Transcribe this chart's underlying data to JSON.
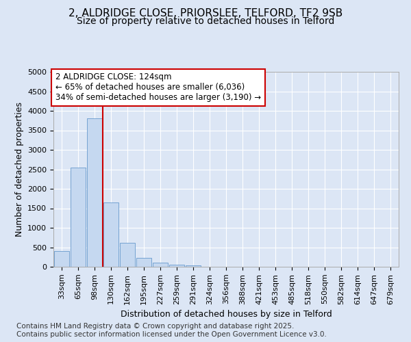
{
  "title_line1": "2, ALDRIDGE CLOSE, PRIORSLEE, TELFORD, TF2 9SB",
  "title_line2": "Size of property relative to detached houses in Telford",
  "xlabel": "Distribution of detached houses by size in Telford",
  "ylabel": "Number of detached properties",
  "categories": [
    "33sqm",
    "65sqm",
    "98sqm",
    "130sqm",
    "162sqm",
    "195sqm",
    "227sqm",
    "259sqm",
    "291sqm",
    "324sqm",
    "356sqm",
    "388sqm",
    "421sqm",
    "453sqm",
    "485sqm",
    "518sqm",
    "550sqm",
    "582sqm",
    "614sqm",
    "647sqm",
    "679sqm"
  ],
  "values": [
    400,
    2550,
    3800,
    1650,
    620,
    230,
    100,
    55,
    30,
    0,
    0,
    0,
    0,
    0,
    0,
    0,
    0,
    0,
    0,
    0,
    0
  ],
  "bar_color": "#c5d8f0",
  "bar_edge_color": "#6699cc",
  "red_line_x": 2.5,
  "annotation_text_line1": "2 ALDRIDGE CLOSE: 124sqm",
  "annotation_text_line2": "← 65% of detached houses are smaller (6,036)",
  "annotation_text_line3": "34% of semi-detached houses are larger (3,190) →",
  "annotation_box_color": "#ffffff",
  "annotation_box_edge_color": "#cc0000",
  "red_line_color": "#cc0000",
  "ylim": [
    0,
    5000
  ],
  "yticks": [
    0,
    500,
    1000,
    1500,
    2000,
    2500,
    3000,
    3500,
    4000,
    4500,
    5000
  ],
  "footer_text": "Contains HM Land Registry data © Crown copyright and database right 2025.\nContains public sector information licensed under the Open Government Licence v3.0.",
  "bg_color": "#dce6f5",
  "plot_bg_color": "#dce6f5",
  "grid_color": "#ffffff",
  "title_fontsize": 11,
  "subtitle_fontsize": 10,
  "tick_fontsize": 8,
  "label_fontsize": 9,
  "footer_fontsize": 7.5,
  "ann_fontsize": 8.5
}
